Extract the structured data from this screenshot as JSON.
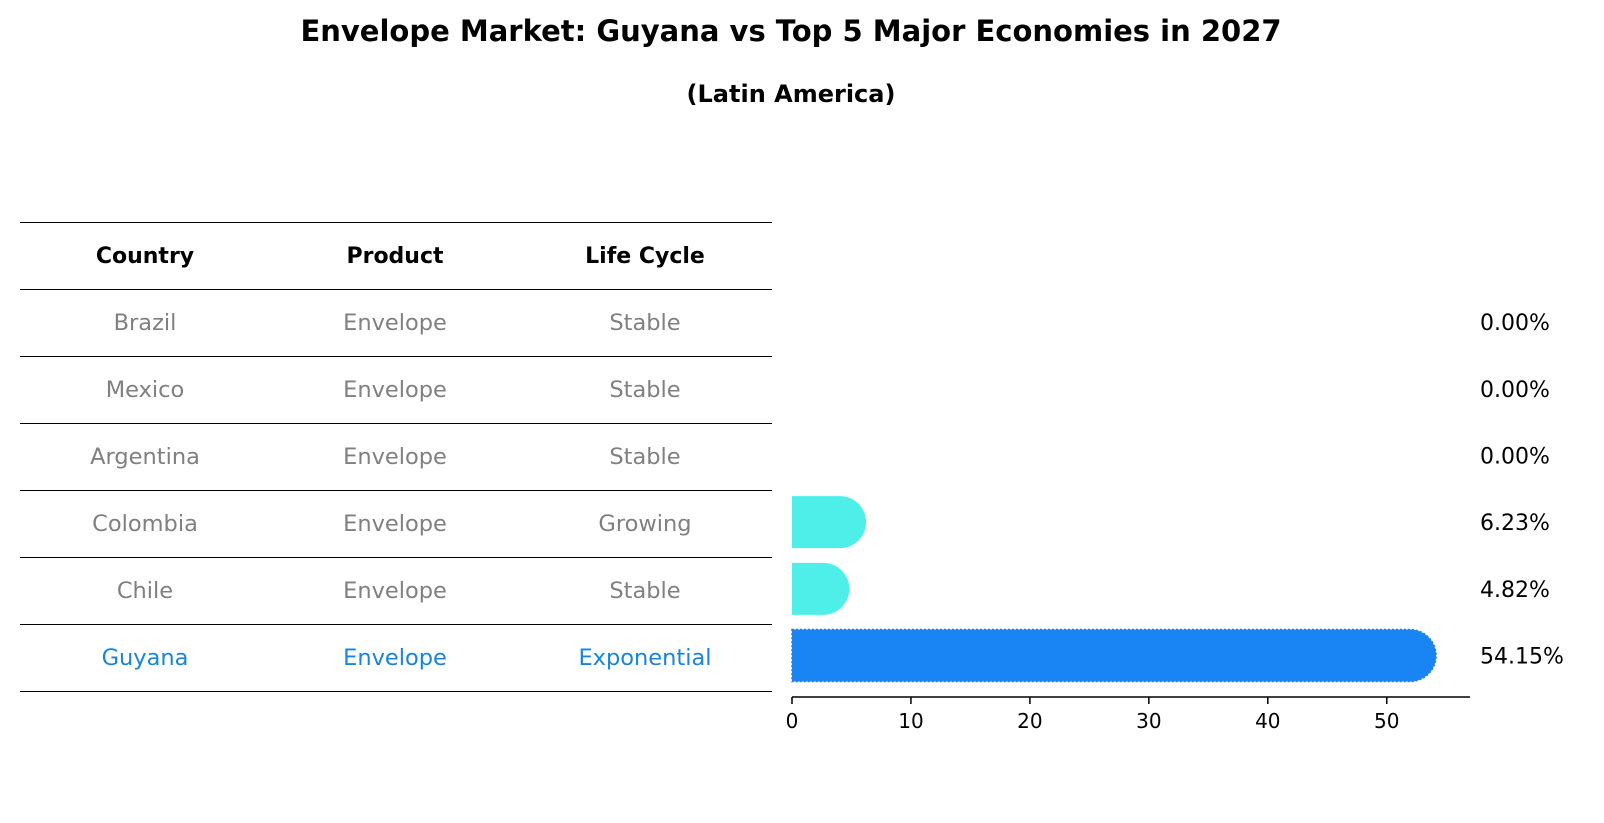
{
  "chart_data": {
    "type": "bar",
    "orientation": "horizontal",
    "title": "Envelope Market: Guyana vs Top 5 Major Economies in 2027",
    "subtitle": "(Latin America)",
    "table": {
      "headers": [
        "Country",
        "Product",
        "Life Cycle"
      ],
      "rows": [
        {
          "country": "Brazil",
          "product": "Envelope",
          "life_cycle": "Stable",
          "highlight": false
        },
        {
          "country": "Mexico",
          "product": "Envelope",
          "life_cycle": "Stable",
          "highlight": false
        },
        {
          "country": "Argentina",
          "product": "Envelope",
          "life_cycle": "Stable",
          "highlight": false
        },
        {
          "country": "Colombia",
          "product": "Envelope",
          "life_cycle": "Growing",
          "highlight": false
        },
        {
          "country": "Chile",
          "product": "Envelope",
          "life_cycle": "Stable",
          "highlight": false
        },
        {
          "country": "Guyana",
          "product": "Envelope",
          "life_cycle": "Exponential",
          "highlight": true
        }
      ]
    },
    "categories": [
      "Brazil",
      "Mexico",
      "Argentina",
      "Colombia",
      "Chile",
      "Guyana"
    ],
    "values": [
      0.0,
      0.0,
      0.0,
      6.23,
      4.82,
      54.15
    ],
    "value_labels": [
      "0.00%",
      "0.00%",
      "0.00%",
      "6.23%",
      "4.82%",
      "54.15%"
    ],
    "xlim": [
      0,
      57
    ],
    "xticks": [
      0,
      10,
      20,
      30,
      40,
      50
    ],
    "xlabel": "",
    "ylabel": "",
    "grid": false,
    "colors": {
      "bar": "#4eeee9",
      "highlight_bar": "#1985f5",
      "muted_text": "#808080",
      "highlight_text": "#1a85d6"
    }
  }
}
